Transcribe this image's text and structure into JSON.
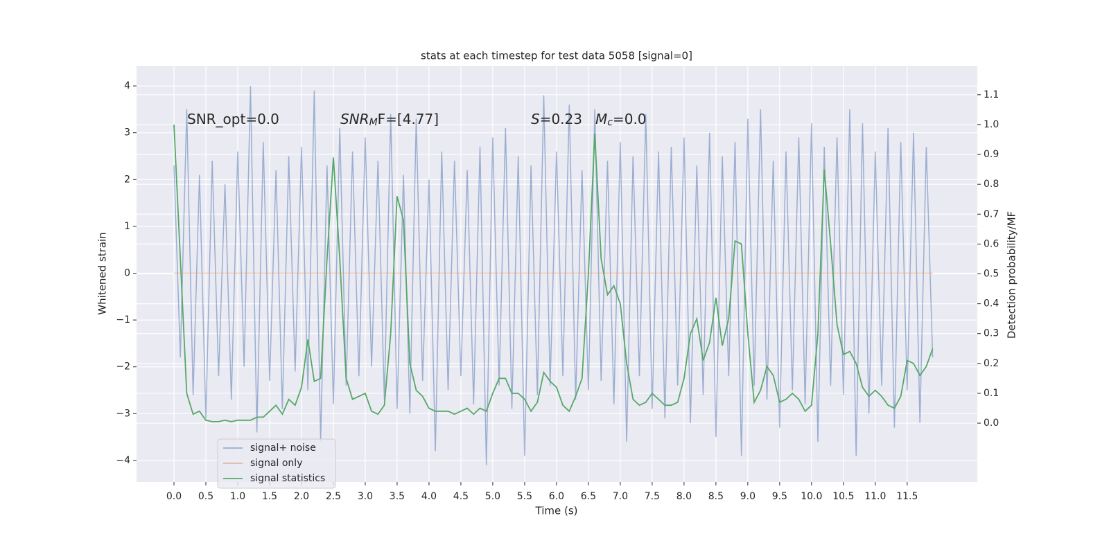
{
  "chart_data": {
    "type": "line",
    "title": "stats at each timestep for test data 5058 [signal=0]",
    "xlabel": "Time (s)",
    "ylabel": "Whitened strain",
    "y2label": "Detection probability/MF",
    "annotations": [
      [
        "SNR_opt=0.0"
      ],
      [
        "SNR",
        "M",
        "F=[4.77]"
      ],
      [
        "S",
        "=0.23"
      ],
      [
        "M",
        "c",
        "=0.0"
      ]
    ],
    "x": [
      0,
      0.1,
      0.2,
      0.3,
      0.4,
      0.5,
      0.6,
      0.7,
      0.8,
      0.9,
      1,
      1.1,
      1.2,
      1.3,
      1.4,
      1.5,
      1.6,
      1.7,
      1.8,
      1.9,
      2,
      2.1,
      2.2,
      2.3,
      2.4,
      2.5,
      2.6,
      2.7,
      2.8,
      2.9,
      3,
      3.1,
      3.2,
      3.3,
      3.4,
      3.5,
      3.6,
      3.7,
      3.8,
      3.9,
      4,
      4.1,
      4.2,
      4.3,
      4.4,
      4.5,
      4.6,
      4.7,
      4.8,
      4.9,
      5,
      5.1,
      5.2,
      5.3,
      5.4,
      5.5,
      5.6,
      5.7,
      5.8,
      5.9,
      6,
      6.1,
      6.2,
      6.3,
      6.4,
      6.5,
      6.6,
      6.7,
      6.8,
      6.9,
      7,
      7.1,
      7.2,
      7.3,
      7.4,
      7.5,
      7.6,
      7.7,
      7.8,
      7.9,
      8,
      8.1,
      8.2,
      8.3,
      8.4,
      8.5,
      8.6,
      8.7,
      8.8,
      8.9,
      9,
      9.1,
      9.2,
      9.3,
      9.4,
      9.5,
      9.6,
      9.7,
      9.8,
      9.9,
      10,
      10.1,
      10.2,
      10.3,
      10.4,
      10.5,
      10.6,
      10.7,
      10.8,
      10.9,
      11,
      11.1,
      11.2,
      11.3,
      11.4,
      11.5,
      11.6,
      11.7,
      11.8,
      11.9
    ],
    "series": [
      {
        "name": "signal+ noise",
        "color": "#4c72b0",
        "opacity": 0.5,
        "values": [
          2.3,
          -1.8,
          3.5,
          -2.6,
          2.1,
          -3.1,
          2.4,
          -2.2,
          1.9,
          -2.7,
          2.6,
          -2.0,
          4.0,
          -3.4,
          2.8,
          -2.3,
          2.2,
          -2.9,
          2.5,
          -2.1,
          2.7,
          -2.5,
          3.9,
          -3.6,
          2.3,
          -2.8,
          3.1,
          -2.4,
          2.6,
          -2.2,
          2.9,
          -2.0,
          2.4,
          -2.7,
          3.4,
          -2.9,
          2.1,
          -3.0,
          3.3,
          -2.3,
          2.0,
          -3.8,
          2.6,
          -2.5,
          2.4,
          -2.2,
          2.2,
          -2.8,
          2.7,
          -4.1,
          2.9,
          -2.4,
          3.1,
          -2.9,
          2.5,
          -3.9,
          2.3,
          -2.6,
          3.8,
          -2.4,
          2.6,
          -2.2,
          3.6,
          -2.7,
          2.2,
          -2.5,
          3.5,
          -2.3,
          2.4,
          -2.8,
          2.8,
          -3.6,
          2.5,
          -2.2,
          3.4,
          -2.9,
          2.6,
          -3.1,
          2.7,
          -2.4,
          2.9,
          -3.2,
          2.3,
          -2.6,
          3.0,
          -3.5,
          2.5,
          -2.2,
          2.8,
          -3.9,
          3.3,
          -2.4,
          3.5,
          -2.7,
          2.4,
          -3.3,
          2.6,
          -2.5,
          2.9,
          -2.8,
          3.2,
          -3.6,
          2.7,
          -2.4,
          2.9,
          -2.6,
          3.5,
          -3.9,
          3.2,
          -3.0,
          2.6,
          -2.4,
          3.1,
          -3.3,
          2.8,
          -2.5,
          3.0,
          -3.2,
          2.7,
          -1.8
        ]
      },
      {
        "name": "signal only",
        "color": "#dd8452",
        "opacity": 0.5,
        "values": [
          0,
          0,
          0,
          0,
          0,
          0,
          0,
          0,
          0,
          0,
          0,
          0,
          0,
          0,
          0,
          0,
          0,
          0,
          0,
          0,
          0,
          0,
          0,
          0,
          0,
          0,
          0,
          0,
          0,
          0,
          0,
          0,
          0,
          0,
          0,
          0,
          0,
          0,
          0,
          0,
          0,
          0,
          0,
          0,
          0,
          0,
          0,
          0,
          0,
          0,
          0,
          0,
          0,
          0,
          0,
          0,
          0,
          0,
          0,
          0,
          0,
          0,
          0,
          0,
          0,
          0,
          0,
          0,
          0,
          0,
          0,
          0,
          0,
          0,
          0,
          0,
          0,
          0,
          0,
          0,
          0,
          0,
          0,
          0,
          0,
          0,
          0,
          0,
          0,
          0,
          0,
          0,
          0,
          0,
          0,
          0,
          0,
          0,
          0,
          0,
          0,
          0,
          0,
          0,
          0,
          0,
          0,
          0,
          0,
          0,
          0,
          0,
          0,
          0,
          0,
          0,
          0,
          0,
          0,
          0
        ]
      },
      {
        "name": "signal statistics",
        "color": "#55a868",
        "opacity": 1,
        "axis": "y2",
        "values": [
          1.0,
          0.55,
          0.1,
          0.03,
          0.04,
          0.01,
          0.005,
          0.005,
          0.01,
          0.005,
          0.01,
          0.01,
          0.01,
          0.02,
          0.02,
          0.04,
          0.06,
          0.03,
          0.08,
          0.06,
          0.12,
          0.28,
          0.14,
          0.15,
          0.55,
          0.89,
          0.55,
          0.15,
          0.08,
          0.09,
          0.1,
          0.04,
          0.03,
          0.06,
          0.3,
          0.76,
          0.68,
          0.2,
          0.11,
          0.09,
          0.05,
          0.04,
          0.04,
          0.04,
          0.03,
          0.04,
          0.05,
          0.03,
          0.05,
          0.04,
          0.1,
          0.15,
          0.15,
          0.1,
          0.1,
          0.08,
          0.04,
          0.07,
          0.17,
          0.14,
          0.12,
          0.06,
          0.04,
          0.09,
          0.15,
          0.5,
          0.97,
          0.55,
          0.43,
          0.46,
          0.4,
          0.2,
          0.08,
          0.06,
          0.07,
          0.1,
          0.08,
          0.06,
          0.06,
          0.07,
          0.15,
          0.3,
          0.35,
          0.21,
          0.27,
          0.42,
          0.26,
          0.35,
          0.61,
          0.6,
          0.3,
          0.07,
          0.11,
          0.19,
          0.16,
          0.07,
          0.08,
          0.1,
          0.08,
          0.04,
          0.06,
          0.3,
          0.85,
          0.6,
          0.33,
          0.23,
          0.24,
          0.2,
          0.12,
          0.09,
          0.11,
          0.09,
          0.06,
          0.05,
          0.09,
          0.21,
          0.2,
          0.16,
          0.19,
          0.25
        ]
      }
    ],
    "xlim": [
      -0.587,
      12.6
    ],
    "ylim": [
      -4.46,
      4.43
    ],
    "y2lim": [
      -0.197,
      1.197
    ],
    "xticks": [
      {
        "value": 0,
        "label": "0.0"
      },
      0.5,
      {
        "value": 1,
        "label": "1.0"
      },
      1.5,
      {
        "value": 2,
        "label": "2.0"
      },
      2.5,
      {
        "value": 3,
        "label": "3.0"
      },
      3.5,
      {
        "value": 4,
        "label": "4.0"
      },
      4.5,
      {
        "value": 5,
        "label": "5.0"
      },
      5.5,
      {
        "value": 6,
        "label": "6.0"
      },
      6.5,
      {
        "value": 7,
        "label": "7.0"
      },
      7.5,
      {
        "value": 8,
        "label": "8.0"
      },
      8.5,
      {
        "value": 9,
        "label": "9.0"
      },
      9.5,
      {
        "value": 10,
        "label": "10.0"
      },
      10.5,
      {
        "value": 11,
        "label": "11.0"
      },
      11.5
    ],
    "yticks": [
      {
        "value": -4,
        "label": "−4"
      },
      {
        "value": -3,
        "label": "−3"
      },
      {
        "value": -2,
        "label": "−2"
      },
      {
        "value": -1,
        "label": "−1"
      },
      0,
      1,
      2,
      3,
      4
    ],
    "y2ticks": [
      {
        "value": 0,
        "label": "0.0"
      },
      0.1,
      0.2,
      0.3,
      0.4,
      0.5,
      0.6,
      0.7,
      0.8,
      0.9,
      {
        "value": 1,
        "label": "1.0"
      },
      1.1
    ],
    "grid": true,
    "legend": "lower left"
  }
}
